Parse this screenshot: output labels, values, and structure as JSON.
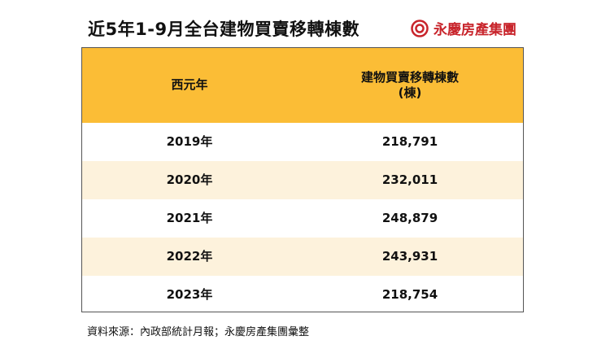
{
  "header": {
    "title": "近5年1-9月全台建物買賣移轉棟數",
    "brand": "永慶房產集團"
  },
  "table": {
    "columns": [
      "西元年",
      "建物買賣移轉棟數\n(棟)"
    ],
    "rows": [
      [
        "2019年",
        "218,791"
      ],
      [
        "2020年",
        "232,011"
      ],
      [
        "2021年",
        "248,879"
      ],
      [
        "2022年",
        "243,931"
      ],
      [
        "2023年",
        "218,754"
      ]
    ]
  },
  "footer": {
    "source": "資料來源：內政部統計月報；永慶房產集團彙整"
  }
}
